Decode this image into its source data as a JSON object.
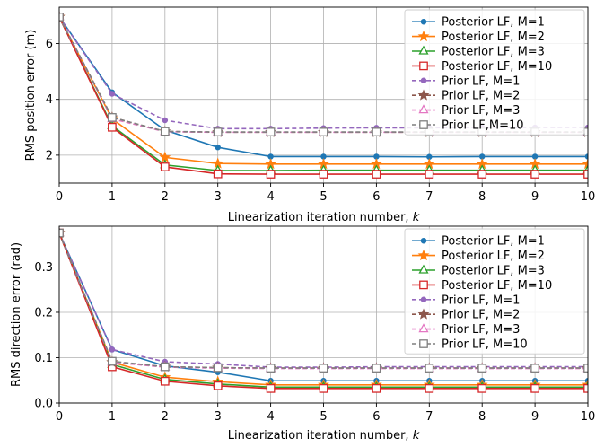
{
  "chart_data": [
    {
      "type": "line",
      "xlabel": "Linearization iteration number, ",
      "xlabel_var": "k",
      "ylabel": "RMS position error (m)",
      "xlim": [
        0,
        10
      ],
      "ylim": [
        1.0,
        7.3
      ],
      "xticks": [
        "0",
        "1",
        "2",
        "3",
        "4",
        "5",
        "6",
        "7",
        "8",
        "9",
        "10"
      ],
      "yticks": [
        2,
        4,
        6
      ],
      "ytick_labels": [
        "2",
        "4",
        "6"
      ],
      "grid": true,
      "legend_position": "top-right",
      "x": [
        0,
        1,
        2,
        3,
        4,
        5,
        6,
        7,
        8,
        9,
        10
      ],
      "series": [
        {
          "name": "Posterior LF, M=1",
          "color": "#1f77b4",
          "style": "solid",
          "marker": "circle",
          "values": [
            6.95,
            4.25,
            2.9,
            2.28,
            1.95,
            1.95,
            1.95,
            1.94,
            1.95,
            1.95,
            1.95
          ]
        },
        {
          "name": "Posterior LF, M=2",
          "color": "#ff7f0e",
          "style": "solid",
          "marker": "star",
          "values": [
            6.95,
            3.3,
            1.92,
            1.7,
            1.68,
            1.68,
            1.68,
            1.68,
            1.68,
            1.68,
            1.68
          ]
        },
        {
          "name": "Posterior LF, M=3",
          "color": "#2ca02c",
          "style": "solid",
          "marker": "triangle",
          "values": [
            6.95,
            3.05,
            1.65,
            1.45,
            1.45,
            1.46,
            1.46,
            1.46,
            1.46,
            1.46,
            1.46
          ]
        },
        {
          "name": "Posterior LF, M=10",
          "color": "#d62728",
          "style": "solid",
          "marker": "square",
          "values": [
            6.95,
            3.0,
            1.58,
            1.33,
            1.32,
            1.32,
            1.32,
            1.32,
            1.32,
            1.32,
            1.32
          ]
        },
        {
          "name": "Prior LF, M=1",
          "color": "#9467bd",
          "style": "dashed",
          "marker": "circle",
          "values": [
            6.95,
            4.2,
            3.25,
            2.95,
            2.95,
            2.97,
            2.98,
            2.98,
            2.99,
            2.99,
            2.99
          ]
        },
        {
          "name": "Prior LF, M=2",
          "color": "#8c564b",
          "style": "dashed",
          "marker": "star",
          "values": [
            6.95,
            3.35,
            2.85,
            2.82,
            2.82,
            2.82,
            2.82,
            2.82,
            2.82,
            2.82,
            2.82
          ]
        },
        {
          "name": "Prior LF, M=3",
          "color": "#e377c2",
          "style": "dashed",
          "marker": "triangle",
          "values": [
            6.95,
            3.3,
            2.84,
            2.82,
            2.82,
            2.82,
            2.82,
            2.82,
            2.82,
            2.82,
            2.82
          ]
        },
        {
          "name": "Prior LF,M=10",
          "color": "#7f7f7f",
          "style": "dashed",
          "marker": "square",
          "values": [
            6.95,
            3.35,
            2.85,
            2.83,
            2.83,
            2.83,
            2.83,
            2.83,
            2.83,
            2.83,
            2.83
          ]
        }
      ]
    },
    {
      "type": "line",
      "xlabel": "Linearization iteration number, ",
      "xlabel_var": "k",
      "ylabel": "RMS direction error (rad)",
      "xlim": [
        0,
        10
      ],
      "ylim": [
        0,
        0.39
      ],
      "xticks": [
        "0",
        "1",
        "2",
        "3",
        "4",
        "5",
        "6",
        "7",
        "8",
        "9",
        "10"
      ],
      "yticks": [
        0.0,
        0.1,
        0.2,
        0.3
      ],
      "ytick_labels": [
        "0.0",
        "0.1",
        "0.2",
        "0.3"
      ],
      "grid": true,
      "legend_position": "top-right",
      "x": [
        0,
        1,
        2,
        3,
        4,
        5,
        6,
        7,
        8,
        9,
        10
      ],
      "series": [
        {
          "name": "Posterior LF, M=1",
          "color": "#1f77b4",
          "style": "solid",
          "marker": "circle",
          "values": [
            0.375,
            0.118,
            0.082,
            0.068,
            0.049,
            0.049,
            0.049,
            0.049,
            0.049,
            0.049,
            0.049
          ]
        },
        {
          "name": "Posterior LF, M=2",
          "color": "#ff7f0e",
          "style": "solid",
          "marker": "star",
          "values": [
            0.375,
            0.09,
            0.057,
            0.047,
            0.04,
            0.04,
            0.04,
            0.04,
            0.04,
            0.04,
            0.04
          ]
        },
        {
          "name": "Posterior LF, M=3",
          "color": "#2ca02c",
          "style": "solid",
          "marker": "triangle",
          "values": [
            0.375,
            0.085,
            0.052,
            0.042,
            0.035,
            0.035,
            0.035,
            0.035,
            0.035,
            0.035,
            0.035
          ]
        },
        {
          "name": "Posterior LF, M=10",
          "color": "#d62728",
          "style": "solid",
          "marker": "square",
          "values": [
            0.375,
            0.08,
            0.048,
            0.038,
            0.032,
            0.032,
            0.032,
            0.032,
            0.032,
            0.032,
            0.032
          ]
        },
        {
          "name": "Prior LF, M=1",
          "color": "#9467bd",
          "style": "dashed",
          "marker": "circle",
          "values": [
            0.375,
            0.118,
            0.091,
            0.086,
            0.079,
            0.079,
            0.08,
            0.08,
            0.08,
            0.08,
            0.08
          ]
        },
        {
          "name": "Prior LF, M=2",
          "color": "#8c564b",
          "style": "dashed",
          "marker": "star",
          "values": [
            0.375,
            0.09,
            0.08,
            0.078,
            0.077,
            0.077,
            0.077,
            0.077,
            0.077,
            0.077,
            0.077
          ]
        },
        {
          "name": "Prior LF, M=3",
          "color": "#e377c2",
          "style": "dashed",
          "marker": "triangle",
          "values": [
            0.375,
            0.09,
            0.079,
            0.077,
            0.076,
            0.076,
            0.076,
            0.076,
            0.076,
            0.076,
            0.076
          ]
        },
        {
          "name": "Prior LF, M=10",
          "color": "#7f7f7f",
          "style": "dashed",
          "marker": "square",
          "values": [
            0.375,
            0.092,
            0.08,
            0.078,
            0.077,
            0.077,
            0.077,
            0.077,
            0.077,
            0.077,
            0.077
          ]
        }
      ]
    }
  ]
}
